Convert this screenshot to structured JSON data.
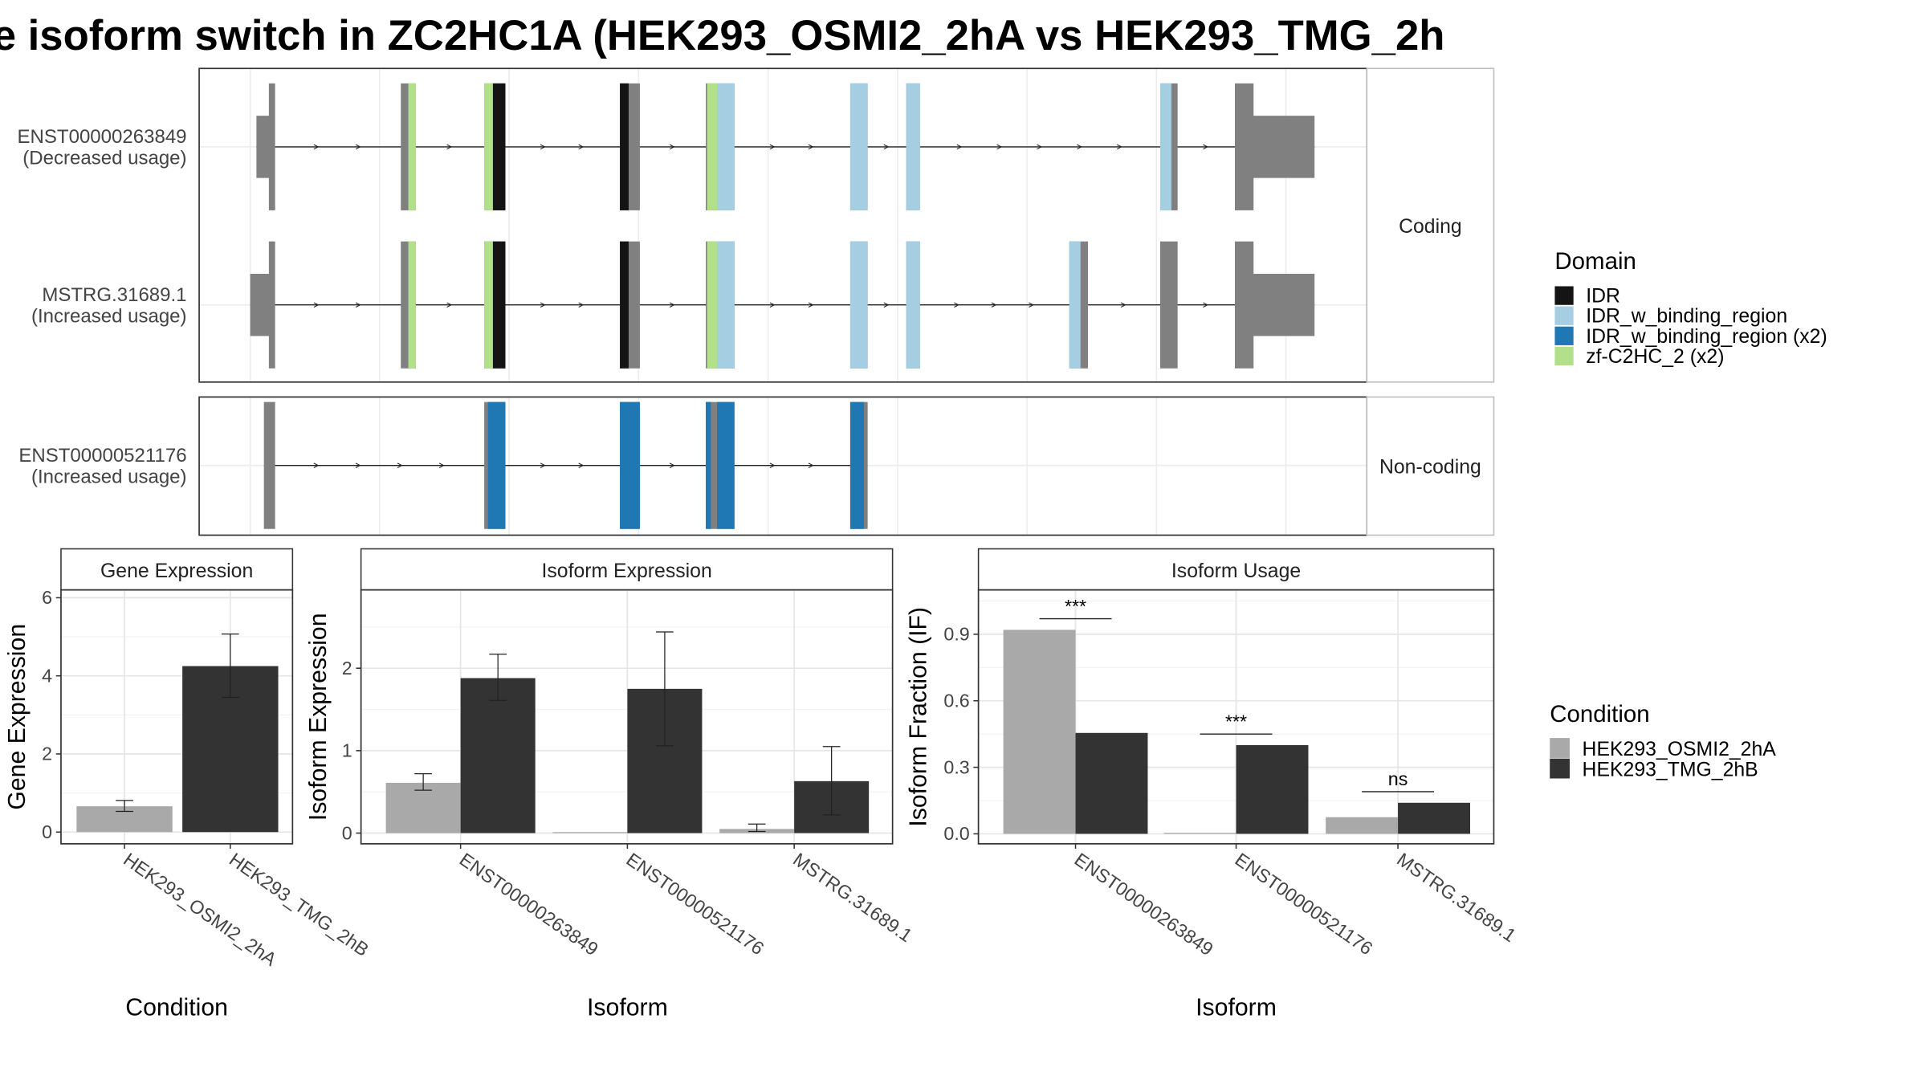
{
  "title": "e isoform switch in ZC2HC1A (HEK293_OSMI2_2hA vs HEK293_TMG_2h",
  "colors": {
    "IDR": "#141414",
    "IDR_w_binding_region": "#a6cee3",
    "IDR_w_binding_region (x2)": "#1f78b4",
    "zf-C2HC_2 (x2)": "#b2df8a",
    "exon": "#808080",
    "HEK293_OSMI2_2hA": "#a9a9a9",
    "HEK293_TMG_2hB": "#333333"
  },
  "structure": {
    "panels": [
      {
        "label": "Coding",
        "transcripts": [
          {
            "line1": "ENST00000263849",
            "line2": "(Decreased usage)",
            "exons": [
              {
                "s": 206,
                "e": 221,
                "thin": true
              },
              {
                "s": 322,
                "e": 334
              },
              {
                "s": 389,
                "e": 406
              },
              {
                "s": 498,
                "e": 514
              },
              {
                "s": 567,
                "e": 590
              },
              {
                "s": 683,
                "e": 697
              },
              {
                "s": 728,
                "e": 739
              },
              {
                "s": 932,
                "e": 946
              },
              {
                "s": 992,
                "e": 1056,
                "utr3": true
              }
            ],
            "domains": [
              {
                "s": 328,
                "e": 334,
                "d": "zf-C2HC_2 (x2)"
              },
              {
                "s": 389,
                "e": 396,
                "d": "zf-C2HC_2 (x2)"
              },
              {
                "s": 396,
                "e": 406,
                "d": "IDR"
              },
              {
                "s": 498,
                "e": 505,
                "d": "IDR"
              },
              {
                "s": 568,
                "e": 576,
                "d": "zf-C2HC_2 (x2)"
              },
              {
                "s": 576,
                "e": 590,
                "d": "IDR_w_binding_region"
              },
              {
                "s": 683,
                "e": 697,
                "d": "IDR_w_binding_region"
              },
              {
                "s": 728,
                "e": 739,
                "d": "IDR_w_binding_region"
              },
              {
                "s": 932,
                "e": 941,
                "d": "IDR_w_binding_region"
              }
            ]
          },
          {
            "line1": "MSTRG.31689.1",
            "line2": "(Increased usage)",
            "exons": [
              {
                "s": 201,
                "e": 221,
                "thin": true
              },
              {
                "s": 322,
                "e": 334
              },
              {
                "s": 389,
                "e": 406
              },
              {
                "s": 498,
                "e": 514
              },
              {
                "s": 567,
                "e": 590
              },
              {
                "s": 683,
                "e": 697
              },
              {
                "s": 728,
                "e": 739
              },
              {
                "s": 859,
                "e": 874
              },
              {
                "s": 932,
                "e": 946
              },
              {
                "s": 992,
                "e": 1056,
                "utr3": true
              }
            ],
            "domains": [
              {
                "s": 328,
                "e": 334,
                "d": "zf-C2HC_2 (x2)"
              },
              {
                "s": 389,
                "e": 396,
                "d": "zf-C2HC_2 (x2)"
              },
              {
                "s": 396,
                "e": 406,
                "d": "IDR"
              },
              {
                "s": 498,
                "e": 505,
                "d": "IDR"
              },
              {
                "s": 568,
                "e": 576,
                "d": "zf-C2HC_2 (x2)"
              },
              {
                "s": 576,
                "e": 590,
                "d": "IDR_w_binding_region"
              },
              {
                "s": 683,
                "e": 697,
                "d": "IDR_w_binding_region"
              },
              {
                "s": 728,
                "e": 739,
                "d": "IDR_w_binding_region"
              },
              {
                "s": 859,
                "e": 868,
                "d": "IDR_w_binding_region"
              }
            ]
          }
        ]
      },
      {
        "label": "Non-coding",
        "transcripts": [
          {
            "line1": "ENST00000521176",
            "line2": "(Increased usage)",
            "exons": [
              {
                "s": 212,
                "e": 221
              },
              {
                "s": 389,
                "e": 406
              },
              {
                "s": 498,
                "e": 514
              },
              {
                "s": 567,
                "e": 590
              },
              {
                "s": 683,
                "e": 697
              }
            ],
            "domains": [
              {
                "s": 392,
                "e": 406,
                "d": "IDR_w_binding_region (x2)"
              },
              {
                "s": 498,
                "e": 514,
                "d": "IDR_w_binding_region (x2)"
              },
              {
                "s": 567,
                "e": 571,
                "d": "IDR_w_binding_region (x2)"
              },
              {
                "s": 576,
                "e": 590,
                "d": "IDR_w_binding_region (x2)"
              },
              {
                "s": 683,
                "e": 694,
                "d": "IDR_w_binding_region (x2)"
              }
            ]
          }
        ]
      }
    ],
    "legend_title": "Domain",
    "legend_items": [
      "IDR",
      "IDR_w_binding_region",
      "IDR_w_binding_region (x2)",
      "zf-C2HC_2 (x2)"
    ]
  },
  "chart_data": [
    {
      "type": "bar",
      "panel_title": "Gene Expression",
      "ylabel": "Gene Expression",
      "xlabel": "Condition",
      "ylim": [
        -0.3,
        6.2
      ],
      "yticks": [
        0,
        2,
        4,
        6
      ],
      "categories": [
        "HEK293_OSMI2_2hA",
        "HEK293_TMG_2hB"
      ],
      "bars": [
        {
          "category": "HEK293_OSMI2_2hA",
          "condition": "HEK293_OSMI2_2hA",
          "value": 0.66,
          "err_low": 0.53,
          "err_high": 0.81
        },
        {
          "category": "HEK293_TMG_2hB",
          "condition": "HEK293_TMG_2hB",
          "value": 4.25,
          "err_low": 3.45,
          "err_high": 5.07
        }
      ]
    },
    {
      "type": "bar",
      "panel_title": "Isoform Expression",
      "ylabel": "Isoform Expression",
      "xlabel": "Isoform",
      "ylim": [
        -0.13,
        2.95
      ],
      "yticks": [
        0,
        1,
        2
      ],
      "categories": [
        "ENST00000263849",
        "ENST00000521176",
        "MSTRG.31689.1"
      ],
      "series": [
        {
          "name": "HEK293_OSMI2_2hA",
          "values": [
            0.61,
            0.0,
            0.05
          ],
          "err_low": [
            0.52,
            0.0,
            0.02
          ],
          "err_high": [
            0.72,
            0.0,
            0.11
          ]
        },
        {
          "name": "HEK293_TMG_2hB",
          "values": [
            1.88,
            1.75,
            0.63
          ],
          "err_low": [
            1.61,
            1.06,
            0.22
          ],
          "err_high": [
            2.17,
            2.44,
            1.05
          ]
        }
      ]
    },
    {
      "type": "bar",
      "panel_title": "Isoform Usage",
      "ylabel": "Isoform Fraction (IF)",
      "xlabel": "Isoform",
      "ylim": [
        -0.045,
        1.1
      ],
      "yticks": [
        "0.0",
        "0.3",
        "0.6",
        "0.9"
      ],
      "categories": [
        "ENST00000263849",
        "ENST00000521176",
        "MSTRG.31689.1"
      ],
      "series": [
        {
          "name": "HEK293_OSMI2_2hA",
          "values": [
            0.92,
            0.0,
            0.075
          ]
        },
        {
          "name": "HEK293_TMG_2hB",
          "values": [
            0.455,
            0.4,
            0.14
          ]
        }
      ],
      "significance": [
        {
          "category": "ENST00000263849",
          "label": "***",
          "y": 0.97
        },
        {
          "category": "ENST00000521176",
          "label": "***",
          "y": 0.45
        },
        {
          "category": "MSTRG.31689.1",
          "label": "ns",
          "y": 0.19
        }
      ]
    }
  ],
  "condition_legend": {
    "title": "Condition",
    "items": [
      "HEK293_OSMI2_2hA",
      "HEK293_TMG_2hB"
    ]
  }
}
